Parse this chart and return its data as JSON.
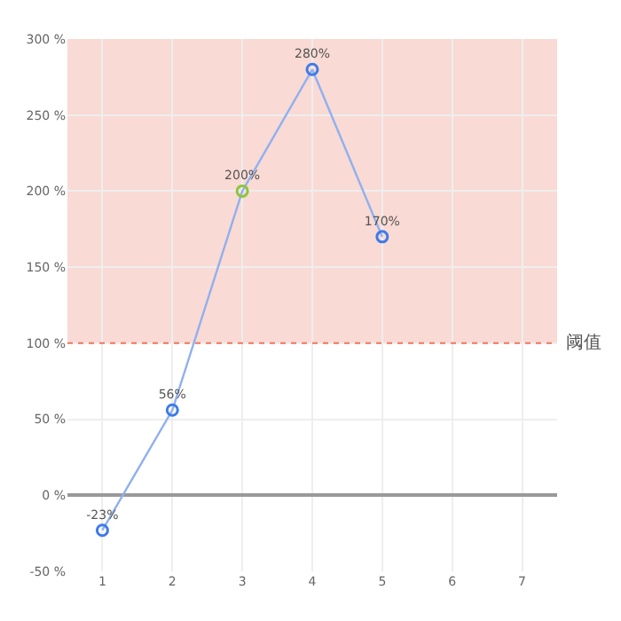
{
  "chart_data": {
    "type": "line",
    "categories": [
      "1",
      "2",
      "3",
      "4",
      "5",
      "6",
      "7"
    ],
    "series": [
      {
        "color": "#8fb0f0",
        "colors": [
          "#3f7be8",
          "#3f7be8",
          "#8cc63f",
          "#3f7be8",
          "#3f7be8",
          "#3f7be8",
          "#3f7be8"
        ],
        "values": [
          -23,
          56,
          200,
          280,
          170,
          null,
          null
        ],
        "value_labels": [
          "-23%",
          "56%",
          "200%",
          "280%",
          "170%",
          null,
          null
        ]
      }
    ],
    "ylim": [
      -50,
      300
    ],
    "yticks": [
      {
        "value": -50,
        "label": "-50 %"
      },
      {
        "value": 0,
        "label": "0 %"
      },
      {
        "value": 50,
        "label": "50 %"
      },
      {
        "value": 100,
        "label": "100 %"
      },
      {
        "value": 150,
        "label": "150 %"
      },
      {
        "value": 200,
        "label": "200 %"
      },
      {
        "value": 250,
        "label": "250 %"
      },
      {
        "value": 300,
        "label": "300 %"
      }
    ],
    "ref_lines": [
      {
        "axis": "y",
        "value": 100,
        "label": "阈值",
        "color": "#f07860",
        "line_style": "dotted"
      }
    ],
    "bands": [
      {
        "axis": "y",
        "from": 100,
        "to": 300,
        "color": "#f9dad4"
      }
    ],
    "grid": true,
    "marker": "circle",
    "line_style": "solid"
  }
}
